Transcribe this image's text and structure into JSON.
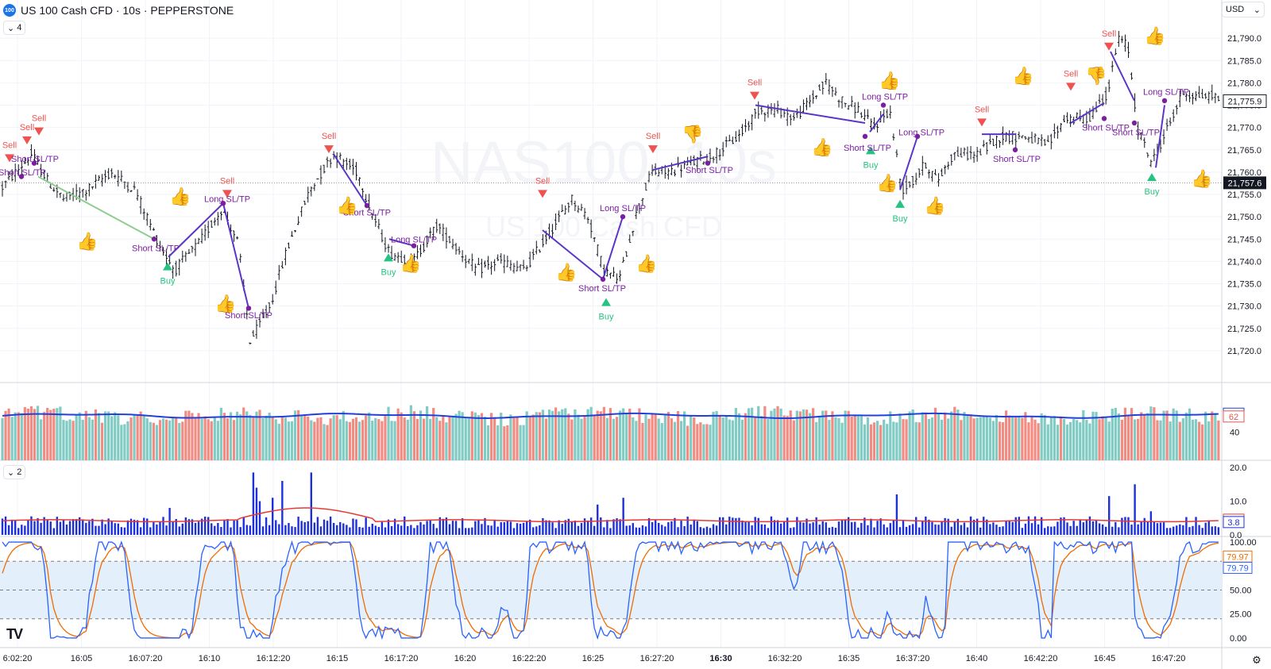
{
  "header": {
    "logo_text": "100",
    "title": "US 100 Cash CFD · 10s · PEPPERSTONE",
    "indicator_count": "4",
    "sub_indicator_count": "2",
    "currency": "USD"
  },
  "watermark": {
    "line1": "NAS100, 10s",
    "line2": "US 100 Cash CFD"
  },
  "colors": {
    "up": "#26a69a",
    "down": "#ef5350",
    "line": "#5b34c8",
    "short_dot": "#7b1fa2",
    "label": "#7b1fa2",
    "sell": "#ef5350",
    "buy": "#26c281",
    "vol_ma": "#2340d8",
    "atr_bar": "#1e30d8",
    "atr_ma": "#e53935",
    "stoch_k": "#2962ff",
    "stoch_d": "#ef6c00",
    "stoch_band": "#e3effb"
  },
  "chart_data": [
    {
      "type": "candlestick",
      "name": "price",
      "ylim": [
        21715,
        21795
      ],
      "yticks": [
        "21,790.0",
        "21,785.0",
        "21,780.0",
        "21,775.0",
        "21,770.0",
        "21,765.0",
        "21,760.0",
        "21,755.0",
        "21,750.0",
        "21,745.0",
        "21,740.0",
        "21,735.0",
        "21,730.0",
        "21,725.0",
        "21,720.0"
      ],
      "ytick_values": [
        21790,
        21785,
        21780,
        21775,
        21770,
        21765,
        21760,
        21755,
        21750,
        21745,
        21740,
        21735,
        21730,
        21725,
        21720
      ],
      "last_price": "21,775.9",
      "last_price_value": 21775.9,
      "ref_price": "21,757.6",
      "ref_price_value": 21757.6,
      "path_keypoints": [
        [
          0,
          21756
        ],
        [
          20,
          21760
        ],
        [
          40,
          21764
        ],
        [
          60,
          21758
        ],
        [
          80,
          21754
        ],
        [
          110,
          21756
        ],
        [
          140,
          21760
        ],
        [
          170,
          21756
        ],
        [
          200,
          21744
        ],
        [
          220,
          21738
        ],
        [
          250,
          21744
        ],
        [
          280,
          21752
        ],
        [
          300,
          21744
        ],
        [
          315,
          21722
        ],
        [
          340,
          21730
        ],
        [
          360,
          21742
        ],
        [
          390,
          21756
        ],
        [
          420,
          21764
        ],
        [
          450,
          21760
        ],
        [
          470,
          21750
        ],
        [
          490,
          21742
        ],
        [
          520,
          21740
        ],
        [
          550,
          21748
        ],
        [
          580,
          21742
        ],
        [
          600,
          21738
        ],
        [
          630,
          21740
        ],
        [
          660,
          21738
        ],
        [
          690,
          21746
        ],
        [
          720,
          21754
        ],
        [
          740,
          21750
        ],
        [
          760,
          21738
        ],
        [
          780,
          21736
        ],
        [
          800,
          21750
        ],
        [
          820,
          21760
        ],
        [
          840,
          21760
        ],
        [
          870,
          21762
        ],
        [
          900,
          21764
        ],
        [
          930,
          21768
        ],
        [
          955,
          21774
        ],
        [
          980,
          21774
        ],
        [
          1000,
          21772
        ],
        [
          1020,
          21776
        ],
        [
          1040,
          21780
        ],
        [
          1060,
          21776
        ],
        [
          1080,
          21774
        ],
        [
          1100,
          21770
        ],
        [
          1120,
          21774
        ],
        [
          1135,
          21756
        ],
        [
          1150,
          21758
        ],
        [
          1165,
          21762
        ],
        [
          1180,
          21758
        ],
        [
          1200,
          21764
        ],
        [
          1230,
          21764
        ],
        [
          1260,
          21768
        ],
        [
          1290,
          21768
        ],
        [
          1320,
          21766
        ],
        [
          1340,
          21772
        ],
        [
          1370,
          21772
        ],
        [
          1395,
          21778
        ],
        [
          1408,
          21790
        ],
        [
          1420,
          21788
        ],
        [
          1432,
          21770
        ],
        [
          1450,
          21762
        ],
        [
          1470,
          21770
        ],
        [
          1490,
          21778
        ],
        [
          1505,
          21777
        ]
      ],
      "sell_signals": [
        [
          12,
          21764
        ],
        [
          34,
          21768
        ],
        [
          49,
          21770
        ],
        [
          286,
          21756
        ],
        [
          414,
          21766
        ],
        [
          683,
          21756
        ],
        [
          822,
          21766
        ],
        [
          950,
          21778
        ],
        [
          1236,
          21772
        ],
        [
          1348,
          21780
        ],
        [
          1396,
          21789
        ]
      ],
      "buy_signals": [
        [
          211,
          21738
        ],
        [
          489,
          21740
        ],
        [
          763,
          21730
        ],
        [
          1096,
          21764
        ],
        [
          1133,
          21752
        ],
        [
          1450,
          21758
        ]
      ],
      "sl_tp_lines": [
        [
          [
            48,
            21759
          ],
          [
            194,
            21745
          ],
          "#8fcd8f"
        ],
        [
          [
            212,
            21741
          ],
          [
            281,
            21753
          ],
          "#5b34c8"
        ],
        [
          [
            281,
            21753
          ],
          [
            313,
            21729.5
          ],
          "#5b34c8"
        ],
        [
          [
            420,
            21764
          ],
          [
            462,
            21752.5
          ],
          "#5b34c8"
        ],
        [
          [
            490,
            21745
          ],
          [
            521,
            21743.5
          ],
          "#5b34c8"
        ],
        [
          [
            683,
            21747
          ],
          [
            759,
            21736
          ],
          "#5b34c8"
        ],
        [
          [
            759,
            21736
          ],
          [
            784,
            21750
          ],
          "#5b34c8"
        ],
        [
          [
            822,
            21760.5
          ],
          [
            891,
            21763.5
          ],
          "#5b34c8"
        ],
        [
          [
            951,
            21775
          ],
          [
            1089,
            21771
          ],
          "#5b34c8"
        ],
        [
          [
            1095,
            21769
          ],
          [
            1112,
            21773
          ],
          "#5b34c8"
        ],
        [
          [
            1133,
            21756
          ],
          [
            1155,
            21768
          ],
          "#5b34c8"
        ],
        [
          [
            1236,
            21768.5
          ],
          [
            1278,
            21768.5
          ],
          "#5b34c8"
        ],
        [
          [
            1348,
            21771
          ],
          [
            1390,
            21775.5
          ],
          "#5b34c8"
        ],
        [
          [
            1398,
            21787
          ],
          [
            1428,
            21776
          ],
          "#5b34c8"
        ],
        [
          [
            1455,
            21761
          ],
          [
            1466,
            21775
          ],
          "#5b34c8"
        ]
      ],
      "sl_dots": [
        [
          27,
          21759
        ],
        [
          43,
          21762
        ],
        [
          194,
          21745
        ],
        [
          281,
          21753
        ],
        [
          313,
          21729.5
        ],
        [
          462,
          21752.5
        ],
        [
          521,
          21743.5
        ],
        [
          759,
          21736
        ],
        [
          784,
          21750
        ],
        [
          891,
          21762
        ],
        [
          1089,
          21768
        ],
        [
          1112,
          21775
        ],
        [
          1155,
          21768
        ],
        [
          1278,
          21765
        ],
        [
          1390,
          21772
        ],
        [
          1428,
          21771
        ],
        [
          1466,
          21776
        ]
      ]
    },
    {
      "type": "bar",
      "name": "volume",
      "ylim": [
        0,
        100
      ],
      "yticks": [
        "40"
      ],
      "ytick_values": [
        40
      ],
      "ma_label": "66",
      "ma_value": 66,
      "last_label": "62",
      "last_value": 62
    },
    {
      "type": "bar",
      "name": "atr",
      "ylim": [
        0,
        20
      ],
      "yticks": [
        "20.0",
        "10.0",
        "0.0"
      ],
      "ytick_values": [
        20,
        10,
        0
      ],
      "ma_label": "4.5",
      "ma_value": 4.5,
      "last_label": "3.8",
      "last_value": 3.8,
      "spikes": [
        [
          318,
          18.5
        ],
        [
          323,
          14
        ],
        [
          328,
          10
        ],
        [
          345,
          11
        ],
        [
          356,
          16
        ],
        [
          390,
          18.5
        ],
        [
          212,
          8
        ],
        [
          753,
          9
        ],
        [
          785,
          11
        ],
        [
          1128,
          12
        ],
        [
          1395,
          11.5
        ],
        [
          1428,
          15
        ],
        [
          1447,
          7
        ]
      ]
    },
    {
      "type": "line",
      "name": "stochastic",
      "ylim": [
        -10,
        105
      ],
      "yticks": [
        "100.00",
        "50.00",
        "25.00",
        "0.00"
      ],
      "ytick_values": [
        100,
        50,
        25,
        0
      ],
      "band": [
        20,
        80
      ],
      "k_label": "79.79",
      "k_value": 79.79,
      "d_label": "79.97",
      "d_value": 79.97
    }
  ],
  "time_axis": {
    "labels": [
      "6:02:20",
      "16:05",
      "16:07:20",
      "16:10",
      "16:12:20",
      "16:15",
      "16:17:20",
      "16:20",
      "16:22:20",
      "16:25",
      "16:27:20",
      "16:30",
      "16:32:20",
      "16:35",
      "16:37:20",
      "16:40",
      "16:42:20",
      "16:45",
      "16:47:20"
    ],
    "bold_label": "16:30"
  },
  "markers": {
    "sell_text": "Sell",
    "buy_text": "Buy",
    "labels": [
      [
        "Short SL/TP",
        44,
        21763
      ],
      [
        "Short SL/TP",
        28,
        21760
      ],
      [
        "Long SL/TP",
        286,
        21754
      ],
      [
        "Short SL/TP",
        196,
        21743
      ],
      [
        "Short SL/TP",
        313,
        21728
      ],
      [
        "Short SL/TP",
        462,
        21751
      ],
      [
        "Long SL/TP",
        521,
        21745
      ],
      [
        "Short SL/TP",
        758,
        21734
      ],
      [
        "Long SL/TP",
        784,
        21752
      ],
      [
        "Short SL/TP",
        893,
        21760.5
      ],
      [
        "Short SL/TP",
        1092,
        21765.5
      ],
      [
        "Long SL/TP",
        1114,
        21777
      ],
      [
        "Long SL/TP",
        1160,
        21769
      ],
      [
        "Short SL/TP",
        1280,
        21763
      ],
      [
        "Short SL/TP",
        1392,
        21770
      ],
      [
        "Short SL/TP",
        1430,
        21769
      ],
      [
        "Long SL/TP",
        1468,
        21778
      ]
    ],
    "thumbs_up": [
      [
        110,
        21745
      ],
      [
        227,
        21755
      ],
      [
        284,
        21731
      ],
      [
        437,
        21753
      ],
      [
        517,
        21740
      ],
      [
        713,
        21738
      ],
      [
        814,
        21740
      ],
      [
        1035,
        21766
      ],
      [
        1120,
        21781
      ],
      [
        1117,
        21758
      ],
      [
        1177,
        21753
      ],
      [
        1288,
        21782
      ],
      [
        1454,
        21791
      ],
      [
        1513,
        21759
      ]
    ],
    "thumbs_down": [
      [
        872,
        21769
      ],
      [
        1380,
        21782
      ]
    ]
  }
}
